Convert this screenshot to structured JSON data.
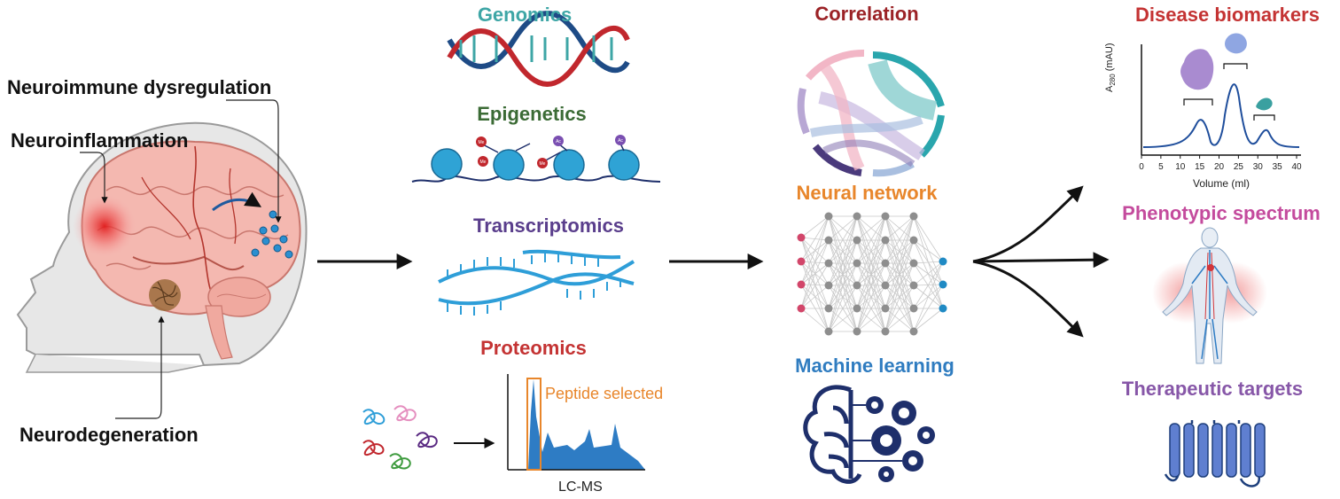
{
  "colors": {
    "genomics": "#3ea6a6",
    "epigenetics": "#3b6b35",
    "transcriptomics": "#5a3e8c",
    "proteomics": "#c43333",
    "correlation": "#9b2226",
    "neural_network": "#e8862b",
    "machine_learning": "#2f7cc0",
    "disease_biomarkers": "#c43333",
    "phenotypic_spectrum": "#c44b9d",
    "therapeutic_targets": "#8757a8",
    "dna_blue": "#3aa0d8",
    "navy": "#1e2f6b",
    "peptide_orange": "#e8862b"
  },
  "brain_panel": {
    "neuroimmune": "Neuroimmune dysregulation",
    "neuroinflammation": "Neuroinflammation",
    "neurodegeneration": "Neurodegeneration"
  },
  "omics": {
    "genomics": "Genomics",
    "epigenetics": "Epigenetics",
    "transcriptomics": "Transcriptomics",
    "proteomics": "Proteomics",
    "peptide_selected": "Peptide selected",
    "lcms": "LC-MS",
    "me_label": "Me",
    "ac_label": "Ac"
  },
  "analysis": {
    "correlation": "Correlation",
    "neural_network": "Neural network",
    "machine_learning": "Machine learning"
  },
  "outcomes": {
    "disease_biomarkers": "Disease biomarkers",
    "phenotypic_spectrum": "Phenotypic spectrum",
    "therapeutic_targets": "Therapeutic targets"
  },
  "chromatogram": {
    "ylabel": "A",
    "ylabel_sub": "280",
    "ylabel_unit": "(mAU)",
    "xlabel": "Volume (ml)",
    "x_ticks": [
      "0",
      "5",
      "10",
      "15",
      "20",
      "25",
      "30",
      "35",
      "40"
    ]
  }
}
